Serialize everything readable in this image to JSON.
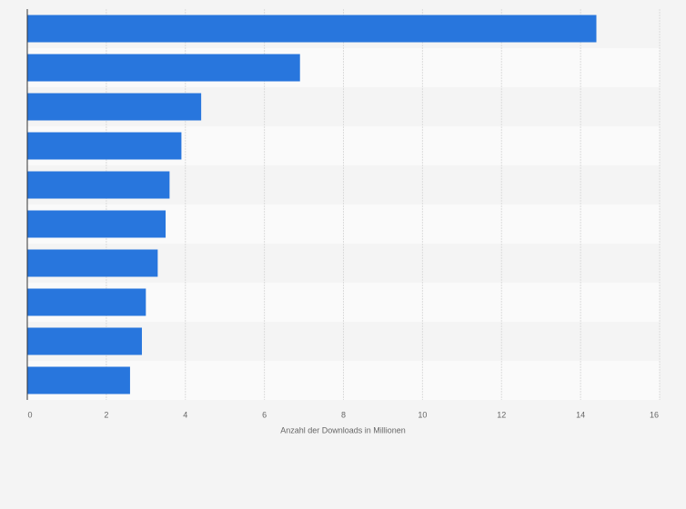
{
  "chart_data": {
    "type": "bar",
    "orientation": "horizontal",
    "categories": [
      null,
      null,
      null,
      null,
      null,
      null,
      null,
      null,
      null,
      null
    ],
    "values": [
      14.4,
      6.9,
      4.4,
      3.9,
      3.6,
      3.5,
      3.3,
      3.0,
      2.9,
      2.6
    ],
    "color": "#2876dd",
    "xlabel": "Anzahl der Downloads in Millionen",
    "xlim": [
      0,
      16
    ],
    "xticks": [
      0,
      2,
      4,
      6,
      8,
      10,
      12,
      14,
      16
    ],
    "grid": true
  }
}
